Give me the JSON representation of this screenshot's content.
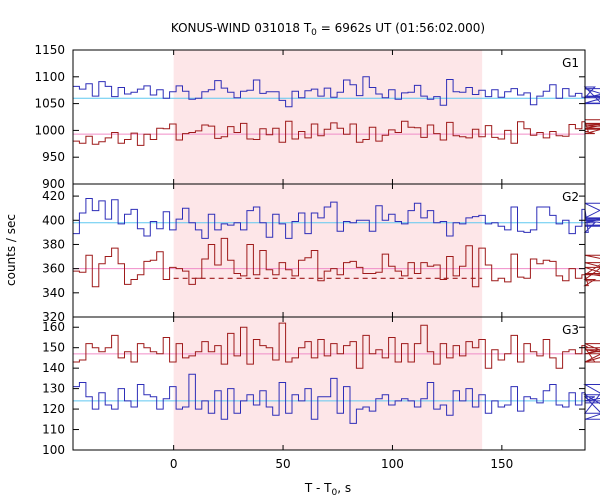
{
  "title": {
    "main": "KONUS-WIND 031018 T",
    "sub": "0",
    "rest": " = 6962s UT (01:56:02.000)"
  },
  "xlabel": {
    "main": "T - T",
    "sub": "0",
    "rest": ", s"
  },
  "ylabel": "counts / sec",
  "colors": {
    "blue": "#2e2eb8",
    "red": "#9e1a1a",
    "bg_line_blue": "#5fc8f0",
    "bg_line_red": "#f08cc8",
    "shade": "#fde6e8",
    "frame": "#000000"
  },
  "chart_data": [
    {
      "type": "line",
      "panel": "G1",
      "title": "",
      "xlabel": "",
      "ylabel": "",
      "xlim": [
        -46,
        188
      ],
      "ylim": [
        900,
        1150
      ],
      "yticks": [
        900,
        950,
        1000,
        1050,
        1100,
        1150
      ],
      "shaded_interval": [
        0,
        141
      ],
      "background_levels": [
        {
          "value": 1060,
          "color": "bg_line_blue"
        },
        {
          "value": 993,
          "color": "bg_line_red"
        }
      ],
      "bin_start": -46,
      "bin_width": 2.944,
      "series": [
        {
          "color": "blue",
          "values": [
            1082,
            1077,
            1087,
            1064,
            1091,
            1082,
            1063,
            1080,
            1068,
            1071,
            1077,
            1083,
            1066,
            1076,
            1060,
            1072,
            1083,
            1073,
            1058,
            1060,
            1072,
            1076,
            1093,
            1079,
            1071,
            1061,
            1073,
            1075,
            1094,
            1069,
            1072,
            1072,
            1056,
            1044,
            1073,
            1061,
            1074,
            1077,
            1064,
            1079,
            1062,
            1071,
            1094,
            1085,
            1065,
            1100,
            1080,
            1068,
            1061,
            1076,
            1058,
            1070,
            1071,
            1084,
            1064,
            1058,
            1063,
            1047,
            1095,
            1072,
            1071,
            1080,
            1067,
            1075,
            1063,
            1076,
            1062,
            1072,
            1078,
            1066,
            1070,
            1048,
            1064,
            1073,
            1085,
            1060,
            1078,
            1064,
            1069,
            1062,
            1061,
            1081,
            1051,
            1063,
            1064,
            1061,
            1078,
            1050
          ]
        },
        {
          "color": "red",
          "values": [
            980,
            976,
            989,
            974,
            979,
            986,
            996,
            976,
            983,
            995,
            972,
            993,
            983,
            1004,
            1003,
            1012,
            982,
            994,
            996,
            999,
            1010,
            1008,
            985,
            988,
            1007,
            996,
            1013,
            984,
            983,
            1003,
            992,
            1004,
            978,
            1017,
            984,
            998,
            986,
            1012,
            990,
            1002,
            1014,
            1004,
            993,
            1012,
            978,
            983,
            1006,
            980,
            991,
            1001,
            996,
            1017,
            1006,
            1005,
            987,
            1010,
            994,
            982,
            1015,
            990,
            988,
            986,
            1002,
            988,
            1009,
            987,
            984,
            1000,
            976,
            1016,
            1003,
            991,
            996,
            986,
            998,
            990,
            989,
            1011,
            1003,
            1016,
            998,
            994,
            1002,
            1004,
            1013,
            1012,
            1008,
            1020
          ]
        }
      ]
    },
    {
      "type": "line",
      "panel": "G2",
      "title": "",
      "xlabel": "",
      "ylabel": "",
      "xlim": [
        -46,
        188
      ],
      "ylim": [
        320,
        430
      ],
      "yticks": [
        320,
        340,
        360,
        380,
        400,
        420
      ],
      "shaded_interval": [
        0,
        141
      ],
      "background_levels": [
        {
          "value": 398,
          "color": "bg_line_blue"
        },
        {
          "value": 360,
          "color": "bg_line_red"
        }
      ],
      "dashed_fit": {
        "color": "red",
        "points": [
          [
            0,
            352
          ],
          [
            141,
            352
          ]
        ]
      },
      "bin_start": -46,
      "bin_width": 2.944,
      "series": [
        {
          "color": "blue",
          "values": [
            389,
            406,
            418,
            408,
            416,
            401,
            417,
            397,
            405,
            409,
            393,
            387,
            399,
            393,
            407,
            392,
            401,
            410,
            398,
            392,
            385,
            405,
            392,
            397,
            396,
            398,
            392,
            408,
            411,
            398,
            386,
            405,
            397,
            385,
            399,
            406,
            389,
            406,
            402,
            411,
            415,
            391,
            399,
            398,
            400,
            400,
            391,
            412,
            400,
            405,
            399,
            397,
            408,
            414,
            402,
            408,
            398,
            399,
            387,
            398,
            397,
            402,
            403,
            404,
            397,
            398,
            395,
            392,
            411,
            391,
            390,
            392,
            411,
            411,
            404,
            397,
            400,
            389,
            395,
            409,
            390,
            398,
            401,
            402,
            414,
            400,
            395,
            396
          ]
        },
        {
          "color": "red",
          "values": [
            358,
            357,
            371,
            345,
            364,
            370,
            377,
            364,
            347,
            351,
            355,
            366,
            367,
            374,
            351,
            361,
            360,
            358,
            347,
            352,
            368,
            380,
            363,
            385,
            367,
            356,
            354,
            380,
            355,
            375,
            359,
            355,
            365,
            359,
            354,
            367,
            369,
            375,
            350,
            358,
            360,
            355,
            365,
            366,
            361,
            356,
            356,
            357,
            372,
            362,
            358,
            354,
            365,
            356,
            365,
            362,
            363,
            351,
            370,
            354,
            362,
            379,
            345,
            377,
            363,
            350,
            352,
            349,
            372,
            353,
            352,
            368,
            364,
            367,
            366,
            354,
            350,
            360,
            352,
            355,
            346,
            351,
            361,
            355,
            371,
            365,
            356,
            350
          ]
        }
      ]
    },
    {
      "type": "line",
      "panel": "G3",
      "title": "",
      "xlabel": "",
      "ylabel": "",
      "xlim": [
        -46,
        188
      ],
      "ylim": [
        100,
        165
      ],
      "yticks": [
        100,
        110,
        120,
        130,
        140,
        150,
        160
      ],
      "xticks": [
        0,
        50,
        100,
        150
      ],
      "shaded_interval": [
        0,
        141
      ],
      "background_levels": [
        {
          "value": 147,
          "color": "bg_line_red"
        },
        {
          "value": 124,
          "color": "bg_line_blue"
        }
      ],
      "bin_start": -46,
      "bin_width": 2.944,
      "series": [
        {
          "color": "red",
          "values": [
            143,
            144,
            152,
            150,
            148,
            150,
            156,
            145,
            148,
            143,
            152,
            150,
            148,
            147,
            155,
            143,
            152,
            145,
            146,
            148,
            153,
            148,
            151,
            142,
            157,
            146,
            160,
            142,
            154,
            151,
            150,
            144,
            162,
            143,
            145,
            150,
            153,
            145,
            154,
            146,
            152,
            147,
            151,
            153,
            140,
            156,
            147,
            149,
            145,
            155,
            143,
            152,
            143,
            152,
            161,
            148,
            142,
            152,
            145,
            151,
            146,
            153,
            150,
            154,
            140,
            149,
            144,
            147,
            156,
            143,
            152,
            148,
            146,
            154,
            145,
            140,
            148,
            149,
            147,
            151,
            150,
            143,
            147,
            149,
            147,
            152,
            143,
            150
          ]
        },
        {
          "color": "blue",
          "values": [
            131,
            133,
            126,
            120,
            128,
            122,
            120,
            130,
            124,
            121,
            132,
            127,
            126,
            120,
            125,
            131,
            120,
            121,
            137,
            120,
            124,
            118,
            129,
            115,
            130,
            118,
            124,
            127,
            122,
            129,
            121,
            117,
            133,
            118,
            127,
            124,
            130,
            115,
            126,
            126,
            135,
            118,
            131,
            113,
            120,
            121,
            119,
            125,
            127,
            122,
            124,
            125,
            124,
            121,
            125,
            133,
            120,
            122,
            117,
            129,
            124,
            130,
            121,
            127,
            118,
            124,
            121,
            122,
            131,
            119,
            126,
            125,
            123,
            129,
            132,
            122,
            121,
            128,
            122,
            128,
            124,
            126,
            118,
            132,
            124,
            127,
            115,
            123
          ]
        }
      ]
    }
  ]
}
